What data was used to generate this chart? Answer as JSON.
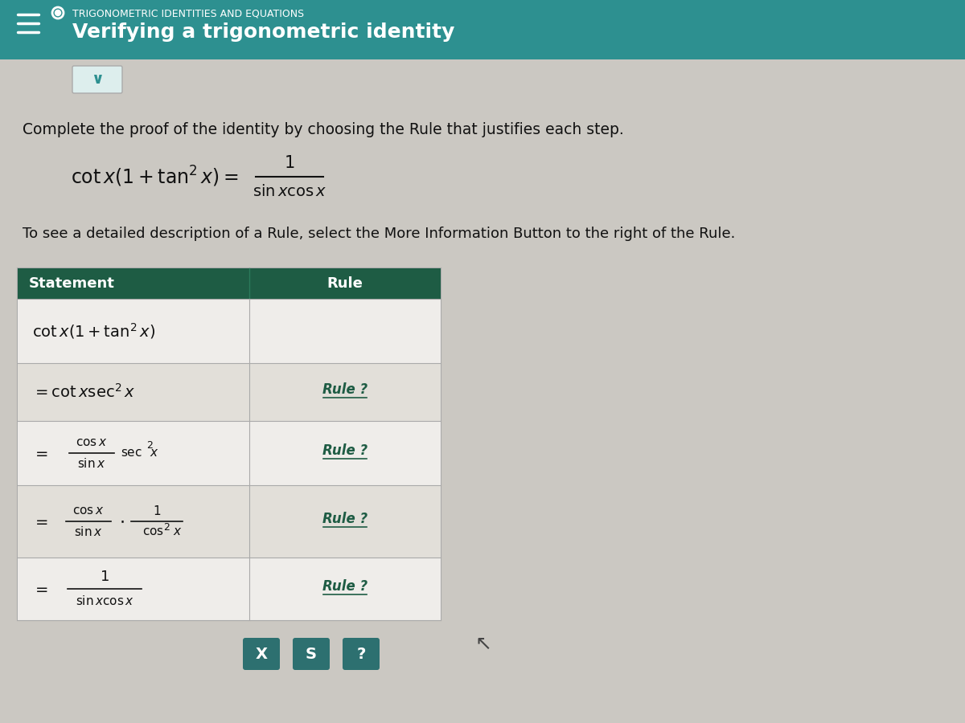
{
  "fig_w": 12.0,
  "fig_h": 9.0,
  "header_bg": "#2d9090",
  "header_text_color": "#ffffff",
  "header_subtitle": "TRIGONOMETRIC IDENTITIES AND EQUATIONS",
  "header_title": "Verifying a trigonometric identity",
  "body_bg": "#cbc8c2",
  "chev_bg": "#ddeeed",
  "chev_color": "#2d9090",
  "instruction": "Complete the proof of the identity by choosing the Rule that justifies each step.",
  "info_text": "To see a detailed description of a Rule, select the More Information Button to the right of the Rule.",
  "table_header_bg": "#1e5c44",
  "table_header_fg": "#ffffff",
  "table_row_bg1": "#efedea",
  "table_row_bg2": "#e2dfd9",
  "table_border": "#aaaaaa",
  "rule_color": "#1e5c44",
  "btn_bg": "#2d7070",
  "btn_fg": "#ffffff",
  "bottom_buttons": [
    "X",
    "S",
    "?"
  ]
}
